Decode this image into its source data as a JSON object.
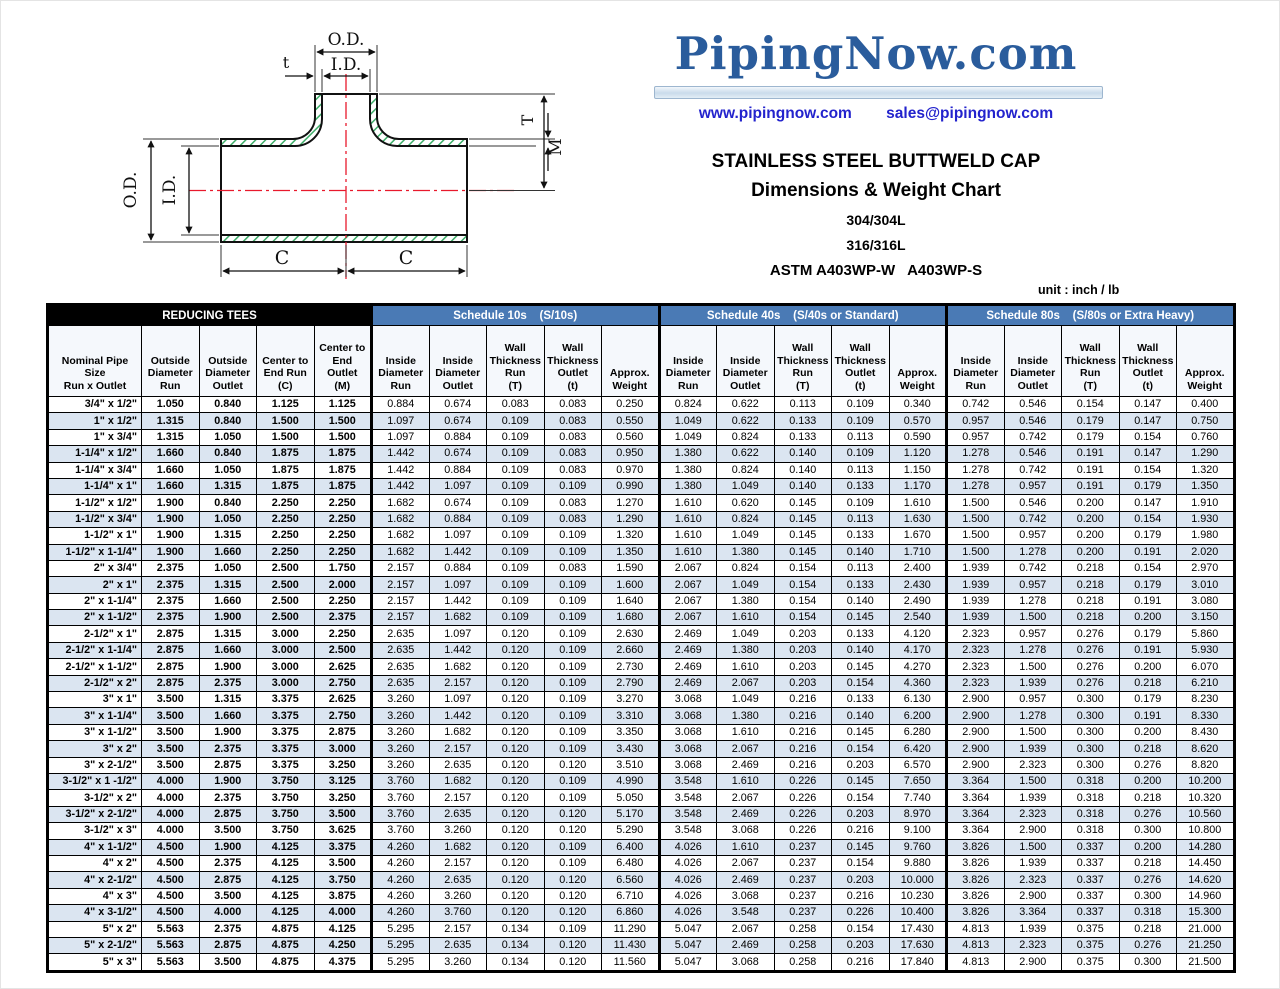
{
  "brand": {
    "logo_text": "PipingNow.com",
    "website": "www.pipingnow.com",
    "email": "sales@pipingnow.com"
  },
  "titles": {
    "line1": "STAINLESS STEEL BUTTWELD CAP",
    "line2": "Dimensions & Weight Chart",
    "line3": "304/304L",
    "line4": "316/316L",
    "line5": "ASTM A403WP-W   A403WP-S"
  },
  "unit_label": "unit : inch / lb",
  "colors": {
    "band_black": "#000000",
    "band_blue": "#4a7ab5",
    "row_alt_blue": "#dbe5f1",
    "logo_blue": "#2a5c9c",
    "link_blue": "#2323cd",
    "hatch_green": "#3fae6a",
    "centerline_red": "#e8192c"
  },
  "diagram": {
    "labels": {
      "od_top": "O.D.",
      "id_top": "I.D.",
      "t_small": "t",
      "od_side": "O.D.",
      "id_side": "I.D.",
      "wall_T": "T",
      "center_M": "M",
      "c_left": "C",
      "c_right": "C"
    }
  },
  "table": {
    "groups": [
      {
        "label": "REDUCING TEES",
        "span": 5,
        "style": "black"
      },
      {
        "label": "Schedule 10s    (S/10s)",
        "span": 5,
        "style": "blue"
      },
      {
        "label": "Schedule 40s    (S/40s or Standard)",
        "span": 5,
        "style": "blue"
      },
      {
        "label": "Schedule 80s    (S/80s or Extra Heavy)",
        "span": 5,
        "style": "blue"
      }
    ],
    "columns": [
      "Nominal Pipe\nSize\nRun x Outlet",
      "Outside\nDiameter\nRun",
      "Outside\nDiameter\nOutlet",
      "Center to\nEnd Run\n(C)",
      "Center to\nEnd\nOutlet\n(M)",
      "Inside\nDiameter\nRun",
      "Inside\nDiameter\nOutlet",
      "Wall\nThickness\nRun\n(T)",
      "Wall\nThickness\nOutlet\n(t)",
      "Approx.\nWeight",
      "Inside\nDiameter\nRun",
      "Inside\nDiameter\nOutlet",
      "Wall\nThickness\nRun\n(T)",
      "Wall\nThickness\nOutlet\n(t)",
      "Approx.\nWeight",
      "Inside\nDiameter\nRun",
      "Inside\nDiameter\nOutlet",
      "Wall\nThickness\nRun\n(T)",
      "Wall\nThickness\nOutlet\n(t)",
      "Approx.\nWeight"
    ],
    "rows": [
      [
        "3/4\" x 1/2\"",
        "1.050",
        "0.840",
        "1.125",
        "1.125",
        "0.884",
        "0.674",
        "0.083",
        "0.083",
        "0.250",
        "0.824",
        "0.622",
        "0.113",
        "0.109",
        "0.340",
        "0.742",
        "0.546",
        "0.154",
        "0.147",
        "0.400"
      ],
      [
        "1\" x 1/2\"",
        "1.315",
        "0.840",
        "1.500",
        "1.500",
        "1.097",
        "0.674",
        "0.109",
        "0.083",
        "0.550",
        "1.049",
        "0.622",
        "0.133",
        "0.109",
        "0.570",
        "0.957",
        "0.546",
        "0.179",
        "0.147",
        "0.750"
      ],
      [
        "1\" x 3/4\"",
        "1.315",
        "1.050",
        "1.500",
        "1.500",
        "1.097",
        "0.884",
        "0.109",
        "0.083",
        "0.560",
        "1.049",
        "0.824",
        "0.133",
        "0.113",
        "0.590",
        "0.957",
        "0.742",
        "0.179",
        "0.154",
        "0.760"
      ],
      [
        "1-1/4\" x 1/2\"",
        "1.660",
        "0.840",
        "1.875",
        "1.875",
        "1.442",
        "0.674",
        "0.109",
        "0.083",
        "0.950",
        "1.380",
        "0.622",
        "0.140",
        "0.109",
        "1.120",
        "1.278",
        "0.546",
        "0.191",
        "0.147",
        "1.290"
      ],
      [
        "1-1/4\" x 3/4\"",
        "1.660",
        "1.050",
        "1.875",
        "1.875",
        "1.442",
        "0.884",
        "0.109",
        "0.083",
        "0.970",
        "1.380",
        "0.824",
        "0.140",
        "0.113",
        "1.150",
        "1.278",
        "0.742",
        "0.191",
        "0.154",
        "1.320"
      ],
      [
        "1-1/4\" x 1\"",
        "1.660",
        "1.315",
        "1.875",
        "1.875",
        "1.442",
        "1.097",
        "0.109",
        "0.109",
        "0.990",
        "1.380",
        "1.049",
        "0.140",
        "0.133",
        "1.170",
        "1.278",
        "0.957",
        "0.191",
        "0.179",
        "1.350"
      ],
      [
        "1-1/2\" x 1/2\"",
        "1.900",
        "0.840",
        "2.250",
        "2.250",
        "1.682",
        "0.674",
        "0.109",
        "0.083",
        "1.270",
        "1.610",
        "0.620",
        "0.145",
        "0.109",
        "1.610",
        "1.500",
        "0.546",
        "0.200",
        "0.147",
        "1.910"
      ],
      [
        "1-1/2\" x 3/4\"",
        "1.900",
        "1.050",
        "2.250",
        "2.250",
        "1.682",
        "0.884",
        "0.109",
        "0.083",
        "1.290",
        "1.610",
        "0.824",
        "0.145",
        "0.113",
        "1.630",
        "1.500",
        "0.742",
        "0.200",
        "0.154",
        "1.930"
      ],
      [
        "1-1/2\" x 1\"",
        "1.900",
        "1.315",
        "2.250",
        "2.250",
        "1.682",
        "1.097",
        "0.109",
        "0.109",
        "1.320",
        "1.610",
        "1.049",
        "0.145",
        "0.133",
        "1.670",
        "1.500",
        "0.957",
        "0.200",
        "0.179",
        "1.980"
      ],
      [
        "1-1/2\" x 1-1/4\"",
        "1.900",
        "1.660",
        "2.250",
        "2.250",
        "1.682",
        "1.442",
        "0.109",
        "0.109",
        "1.350",
        "1.610",
        "1.380",
        "0.145",
        "0.140",
        "1.710",
        "1.500",
        "1.278",
        "0.200",
        "0.191",
        "2.020"
      ],
      [
        "2\" x 3/4\"",
        "2.375",
        "1.050",
        "2.500",
        "1.750",
        "2.157",
        "0.884",
        "0.109",
        "0.083",
        "1.590",
        "2.067",
        "0.824",
        "0.154",
        "0.113",
        "2.400",
        "1.939",
        "0.742",
        "0.218",
        "0.154",
        "2.970"
      ],
      [
        "2\" x 1\"",
        "2.375",
        "1.315",
        "2.500",
        "2.000",
        "2.157",
        "1.097",
        "0.109",
        "0.109",
        "1.600",
        "2.067",
        "1.049",
        "0.154",
        "0.133",
        "2.430",
        "1.939",
        "0.957",
        "0.218",
        "0.179",
        "3.010"
      ],
      [
        "2\" x 1-1/4\"",
        "2.375",
        "1.660",
        "2.500",
        "2.250",
        "2.157",
        "1.442",
        "0.109",
        "0.109",
        "1.640",
        "2.067",
        "1.380",
        "0.154",
        "0.140",
        "2.490",
        "1.939",
        "1.278",
        "0.218",
        "0.191",
        "3.080"
      ],
      [
        "2\" x 1-1/2\"",
        "2.375",
        "1.900",
        "2.500",
        "2.375",
        "2.157",
        "1.682",
        "0.109",
        "0.109",
        "1.680",
        "2.067",
        "1.610",
        "0.154",
        "0.145",
        "2.540",
        "1.939",
        "1.500",
        "0.218",
        "0.200",
        "3.150"
      ],
      [
        "2-1/2\" x 1\"",
        "2.875",
        "1.315",
        "3.000",
        "2.250",
        "2.635",
        "1.097",
        "0.120",
        "0.109",
        "2.630",
        "2.469",
        "1.049",
        "0.203",
        "0.133",
        "4.120",
        "2.323",
        "0.957",
        "0.276",
        "0.179",
        "5.860"
      ],
      [
        "2-1/2\" x 1-1/4\"",
        "2.875",
        "1.660",
        "3.000",
        "2.500",
        "2.635",
        "1.442",
        "0.120",
        "0.109",
        "2.660",
        "2.469",
        "1.380",
        "0.203",
        "0.140",
        "4.170",
        "2.323",
        "1.278",
        "0.276",
        "0.191",
        "5.930"
      ],
      [
        "2-1/2\" x 1-1/2\"",
        "2.875",
        "1.900",
        "3.000",
        "2.625",
        "2.635",
        "1.682",
        "0.120",
        "0.109",
        "2.730",
        "2.469",
        "1.610",
        "0.203",
        "0.145",
        "4.270",
        "2.323",
        "1.500",
        "0.276",
        "0.200",
        "6.070"
      ],
      [
        "2-1/2\" x 2\"",
        "2.875",
        "2.375",
        "3.000",
        "2.750",
        "2.635",
        "2.157",
        "0.120",
        "0.109",
        "2.790",
        "2.469",
        "2.067",
        "0.203",
        "0.154",
        "4.360",
        "2.323",
        "1.939",
        "0.276",
        "0.218",
        "6.210"
      ],
      [
        "3\" x 1\"",
        "3.500",
        "1.315",
        "3.375",
        "2.625",
        "3.260",
        "1.097",
        "0.120",
        "0.109",
        "3.270",
        "3.068",
        "1.049",
        "0.216",
        "0.133",
        "6.130",
        "2.900",
        "0.957",
        "0.300",
        "0.179",
        "8.230"
      ],
      [
        "3\" x 1-1/4\"",
        "3.500",
        "1.660",
        "3.375",
        "2.750",
        "3.260",
        "1.442",
        "0.120",
        "0.109",
        "3.310",
        "3.068",
        "1.380",
        "0.216",
        "0.140",
        "6.200",
        "2.900",
        "1.278",
        "0.300",
        "0.191",
        "8.330"
      ],
      [
        "3\" x 1-1/2\"",
        "3.500",
        "1.900",
        "3.375",
        "2.875",
        "3.260",
        "1.682",
        "0.120",
        "0.109",
        "3.350",
        "3.068",
        "1.610",
        "0.216",
        "0.145",
        "6.280",
        "2.900",
        "1.500",
        "0.300",
        "0.200",
        "8.430"
      ],
      [
        "3\" x 2\"",
        "3.500",
        "2.375",
        "3.375",
        "3.000",
        "3.260",
        "2.157",
        "0.120",
        "0.109",
        "3.430",
        "3.068",
        "2.067",
        "0.216",
        "0.154",
        "6.420",
        "2.900",
        "1.939",
        "0.300",
        "0.218",
        "8.620"
      ],
      [
        "3\" x 2-1/2\"",
        "3.500",
        "2.875",
        "3.375",
        "3.250",
        "3.260",
        "2.635",
        "0.120",
        "0.120",
        "3.510",
        "3.068",
        "2.469",
        "0.216",
        "0.203",
        "6.570",
        "2.900",
        "2.323",
        "0.300",
        "0.276",
        "8.820"
      ],
      [
        "3-1/2\" x 1 -1/2\"",
        "4.000",
        "1.900",
        "3.750",
        "3.125",
        "3.760",
        "1.682",
        "0.120",
        "0.109",
        "4.990",
        "3.548",
        "1.610",
        "0.226",
        "0.145",
        "7.650",
        "3.364",
        "1.500",
        "0.318",
        "0.200",
        "10.200"
      ],
      [
        "3-1/2\" x 2\"",
        "4.000",
        "2.375",
        "3.750",
        "3.250",
        "3.760",
        "2.157",
        "0.120",
        "0.109",
        "5.050",
        "3.548",
        "2.067",
        "0.226",
        "0.154",
        "7.740",
        "3.364",
        "1.939",
        "0.318",
        "0.218",
        "10.320"
      ],
      [
        "3-1/2\" x 2-1/2\"",
        "4.000",
        "2.875",
        "3.750",
        "3.500",
        "3.760",
        "2.635",
        "0.120",
        "0.120",
        "5.170",
        "3.548",
        "2.469",
        "0.226",
        "0.203",
        "8.970",
        "3.364",
        "2.323",
        "0.318",
        "0.276",
        "10.560"
      ],
      [
        "3-1/2\" x 3\"",
        "4.000",
        "3.500",
        "3.750",
        "3.625",
        "3.760",
        "3.260",
        "0.120",
        "0.120",
        "5.290",
        "3.548",
        "3.068",
        "0.226",
        "0.216",
        "9.100",
        "3.364",
        "2.900",
        "0.318",
        "0.300",
        "10.800"
      ],
      [
        "4\" x 1-1/2\"",
        "4.500",
        "1.900",
        "4.125",
        "3.375",
        "4.260",
        "1.682",
        "0.120",
        "0.109",
        "6.400",
        "4.026",
        "1.610",
        "0.237",
        "0.145",
        "9.760",
        "3.826",
        "1.500",
        "0.337",
        "0.200",
        "14.280"
      ],
      [
        "4\" x 2\"",
        "4.500",
        "2.375",
        "4.125",
        "3.500",
        "4.260",
        "2.157",
        "0.120",
        "0.109",
        "6.480",
        "4.026",
        "2.067",
        "0.237",
        "0.154",
        "9.880",
        "3.826",
        "1.939",
        "0.337",
        "0.218",
        "14.450"
      ],
      [
        "4\" x 2-1/2\"",
        "4.500",
        "2.875",
        "4.125",
        "3.750",
        "4.260",
        "2.635",
        "0.120",
        "0.120",
        "6.560",
        "4.026",
        "2.469",
        "0.237",
        "0.203",
        "10.000",
        "3.826",
        "2.323",
        "0.337",
        "0.276",
        "14.620"
      ],
      [
        "4\" x 3\"",
        "4.500",
        "3.500",
        "4.125",
        "3.875",
        "4.260",
        "3.260",
        "0.120",
        "0.120",
        "6.710",
        "4.026",
        "3.068",
        "0.237",
        "0.216",
        "10.230",
        "3.826",
        "2.900",
        "0.337",
        "0.300",
        "14.960"
      ],
      [
        "4\" x 3-1/2\"",
        "4.500",
        "4.000",
        "4.125",
        "4.000",
        "4.260",
        "3.760",
        "0.120",
        "0.120",
        "6.860",
        "4.026",
        "3.548",
        "0.237",
        "0.226",
        "10.400",
        "3.826",
        "3.364",
        "0.337",
        "0.318",
        "15.300"
      ],
      [
        "5\" x 2\"",
        "5.563",
        "2.375",
        "4.875",
        "4.125",
        "5.295",
        "2.157",
        "0.134",
        "0.109",
        "11.290",
        "5.047",
        "2.067",
        "0.258",
        "0.154",
        "17.430",
        "4.813",
        "1.939",
        "0.375",
        "0.218",
        "21.000"
      ],
      [
        "5\" x 2-1/2\"",
        "5.563",
        "2.875",
        "4.875",
        "4.250",
        "5.295",
        "2.635",
        "0.134",
        "0.120",
        "11.430",
        "5.047",
        "2.469",
        "0.258",
        "0.203",
        "17.630",
        "4.813",
        "2.323",
        "0.375",
        "0.276",
        "21.250"
      ],
      [
        "5\" x 3\"",
        "5.563",
        "3.500",
        "4.875",
        "4.375",
        "5.295",
        "3.260",
        "0.134",
        "0.120",
        "11.560",
        "5.047",
        "3.068",
        "0.258",
        "0.216",
        "17.840",
        "4.813",
        "2.900",
        "0.375",
        "0.300",
        "21.500"
      ]
    ]
  }
}
